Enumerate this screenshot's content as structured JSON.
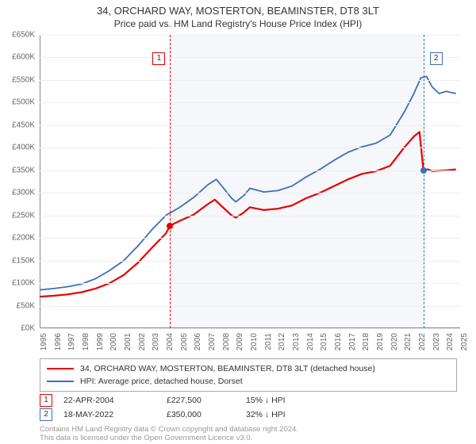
{
  "title": "34, ORCHARD WAY, MOSTERTON, BEAMINSTER, DT8 3LT",
  "subtitle": "Price paid vs. HM Land Registry's House Price Index (HPI)",
  "chart": {
    "type": "line",
    "background_color": "#ffffff",
    "grid_color": "#eeeeee",
    "axis_color": "#888888",
    "tick_color": "#666666",
    "tick_fontsize": 10,
    "x_years": [
      1995,
      1996,
      1997,
      1998,
      1999,
      2000,
      2001,
      2002,
      2003,
      2004,
      2005,
      2006,
      2007,
      2008,
      2009,
      2010,
      2011,
      2012,
      2013,
      2014,
      2015,
      2016,
      2017,
      2018,
      2019,
      2020,
      2021,
      2022,
      2023,
      2024,
      2025
    ],
    "xlim": [
      1995,
      2025
    ],
    "ylim": [
      0,
      650000
    ],
    "ytick_step": 50000,
    "y_prefix": "£",
    "y_suffix": "K",
    "shaded_band": {
      "start": 2004.31,
      "end": 2022.38,
      "color": "#eef2f8"
    },
    "series": [
      {
        "name": "property",
        "label": "34, ORCHARD WAY, MOSTERTON, BEAMINSTER, DT8 3LT (detached house)",
        "color": "#e60000",
        "line_width": 2.2,
        "points": [
          [
            1995,
            70000
          ],
          [
            1996,
            72000
          ],
          [
            1997,
            75000
          ],
          [
            1998,
            80000
          ],
          [
            1999,
            88000
          ],
          [
            2000,
            100000
          ],
          [
            2001,
            118000
          ],
          [
            2002,
            145000
          ],
          [
            2003,
            178000
          ],
          [
            2004,
            210000
          ],
          [
            2004.31,
            227500
          ],
          [
            2005,
            238000
          ],
          [
            2006,
            252000
          ],
          [
            2007,
            275000
          ],
          [
            2007.5,
            285000
          ],
          [
            2008,
            270000
          ],
          [
            2008.7,
            250000
          ],
          [
            2009,
            245000
          ],
          [
            2009.5,
            255000
          ],
          [
            2010,
            268000
          ],
          [
            2011,
            262000
          ],
          [
            2012,
            265000
          ],
          [
            2013,
            272000
          ],
          [
            2014,
            288000
          ],
          [
            2015,
            300000
          ],
          [
            2016,
            315000
          ],
          [
            2017,
            330000
          ],
          [
            2018,
            342000
          ],
          [
            2019,
            348000
          ],
          [
            2020,
            360000
          ],
          [
            2021,
            400000
          ],
          [
            2021.7,
            425000
          ],
          [
            2022.1,
            435000
          ],
          [
            2022.38,
            350000
          ],
          [
            2022.7,
            352000
          ],
          [
            2023,
            348000
          ],
          [
            2024,
            350000
          ],
          [
            2024.7,
            352000
          ]
        ]
      },
      {
        "name": "hpi",
        "label": "HPI: Average price, detached house, Dorset",
        "color": "#3b6fb6",
        "line_width": 1.8,
        "points": [
          [
            1995,
            85000
          ],
          [
            1996,
            88000
          ],
          [
            1997,
            92000
          ],
          [
            1998,
            98000
          ],
          [
            1999,
            110000
          ],
          [
            2000,
            128000
          ],
          [
            2001,
            150000
          ],
          [
            2002,
            182000
          ],
          [
            2003,
            218000
          ],
          [
            2004,
            250000
          ],
          [
            2005,
            268000
          ],
          [
            2006,
            290000
          ],
          [
            2007,
            318000
          ],
          [
            2007.6,
            330000
          ],
          [
            2008,
            315000
          ],
          [
            2008.7,
            288000
          ],
          [
            2009,
            280000
          ],
          [
            2009.6,
            295000
          ],
          [
            2010,
            310000
          ],
          [
            2011,
            302000
          ],
          [
            2012,
            305000
          ],
          [
            2013,
            315000
          ],
          [
            2014,
            335000
          ],
          [
            2015,
            352000
          ],
          [
            2016,
            372000
          ],
          [
            2017,
            390000
          ],
          [
            2018,
            402000
          ],
          [
            2019,
            410000
          ],
          [
            2020,
            428000
          ],
          [
            2021,
            478000
          ],
          [
            2021.7,
            520000
          ],
          [
            2022.2,
            555000
          ],
          [
            2022.6,
            558000
          ],
          [
            2023,
            535000
          ],
          [
            2023.5,
            520000
          ],
          [
            2024,
            525000
          ],
          [
            2024.7,
            520000
          ]
        ]
      }
    ],
    "sale_markers": [
      {
        "n": "1",
        "x": 2004.31,
        "y": 227500,
        "color": "#e60000"
      },
      {
        "n": "2",
        "x": 2022.38,
        "y": 350000,
        "color": "#3b6fb6"
      }
    ]
  },
  "legend": {
    "items": [
      {
        "color": "#e60000",
        "label": "34, ORCHARD WAY, MOSTERTON, BEAMINSTER, DT8 3LT (detached house)"
      },
      {
        "color": "#3b6fb6",
        "label": "HPI: Average price, detached house, Dorset"
      }
    ]
  },
  "sales": [
    {
      "n": "1",
      "color": "#e60000",
      "date": "22-APR-2004",
      "price": "£227,500",
      "diff": "15% ↓ HPI"
    },
    {
      "n": "2",
      "color": "#3b6fb6",
      "date": "18-MAY-2022",
      "price": "£350,000",
      "diff": "32% ↓ HPI"
    }
  ],
  "footnote_line1": "Contains HM Land Registry data © Crown copyright and database right 2024.",
  "footnote_line2": "This data is licensed under the Open Government Licence v3.0."
}
